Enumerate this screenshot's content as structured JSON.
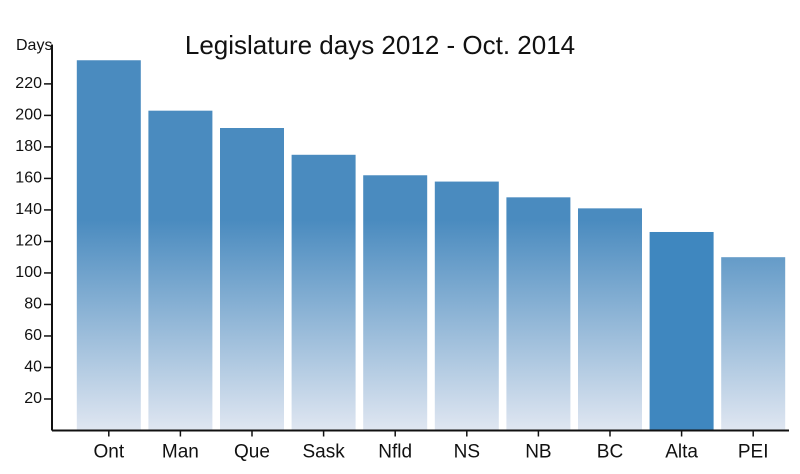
{
  "chart_data": {
    "type": "bar",
    "title": "Legislature days 2012 - Oct. 2014",
    "y_label": "Days",
    "categories": [
      "Ont",
      "Man",
      "Que",
      "Sask",
      "Nfld",
      "NS",
      "NB",
      "BC",
      "Alta",
      "PEI"
    ],
    "values": [
      235,
      203,
      192,
      175,
      162,
      158,
      148,
      141,
      126,
      110
    ],
    "color": "#4a8bbf",
    "highlight": "Alta",
    "highlight_color": "#3f87bf",
    "ylim": [
      0,
      245
    ],
    "yticks": [
      20,
      40,
      60,
      80,
      100,
      120,
      140,
      160,
      180,
      200,
      220
    ]
  }
}
